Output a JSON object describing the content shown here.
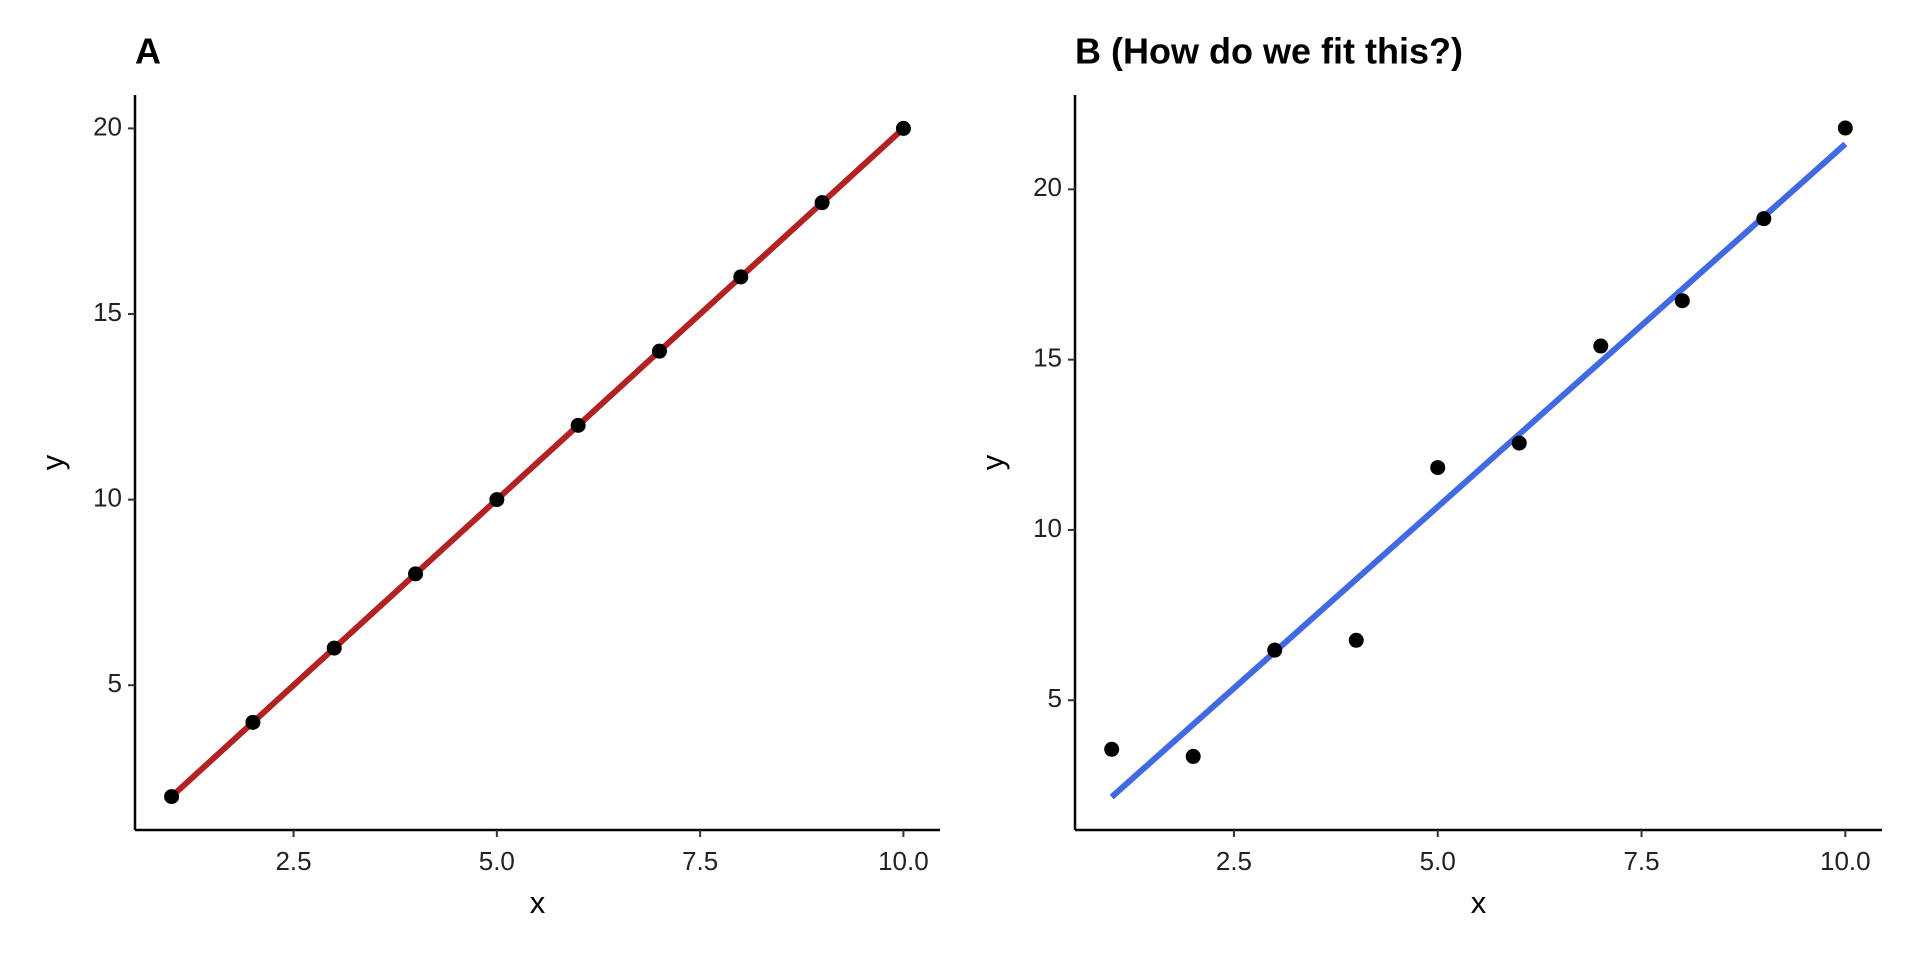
{
  "chart_data": [
    {
      "type": "scatter",
      "title": "A",
      "x_label": "x",
      "y_label": "y",
      "x": [
        1,
        2,
        3,
        4,
        5,
        6,
        7,
        8,
        9,
        10
      ],
      "values": [
        2,
        4,
        6,
        8,
        10,
        12,
        14,
        16,
        18,
        20
      ],
      "color": "#000000",
      "fit": {
        "x": [
          1,
          10
        ],
        "values": [
          2,
          20
        ],
        "color": "#b22222"
      },
      "xlim": [
        0.55,
        10.45
      ],
      "ylim": [
        1.1,
        20.9
      ],
      "xticks": [
        2.5,
        {
          "value": 5,
          "label": "5.0"
        },
        7.5,
        {
          "value": 10,
          "label": "10.0"
        }
      ],
      "yticks": [
        5,
        10,
        15,
        20
      ]
    },
    {
      "type": "scatter",
      "title": "B (How do we fit this?)",
      "x_label": "x",
      "y_label": "y",
      "x": [
        1,
        2,
        3,
        4,
        5,
        6,
        7,
        8,
        9,
        10
      ],
      "values": [
        3.56,
        3.35,
        6.47,
        6.76,
        11.83,
        12.55,
        15.4,
        16.73,
        19.14,
        21.8
      ],
      "color": "#000000",
      "fit": {
        "x": [
          1,
          10
        ],
        "values": [
          2.16,
          21.33
        ],
        "color": "#4169e1"
      },
      "xlim": [
        0.55,
        10.45
      ],
      "ylim": [
        1.19,
        22.77
      ],
      "xticks": [
        2.5,
        {
          "value": 5,
          "label": "5.0"
        },
        7.5,
        {
          "value": 10,
          "label": "10.0"
        }
      ],
      "yticks": [
        5,
        10,
        15,
        20
      ]
    }
  ]
}
